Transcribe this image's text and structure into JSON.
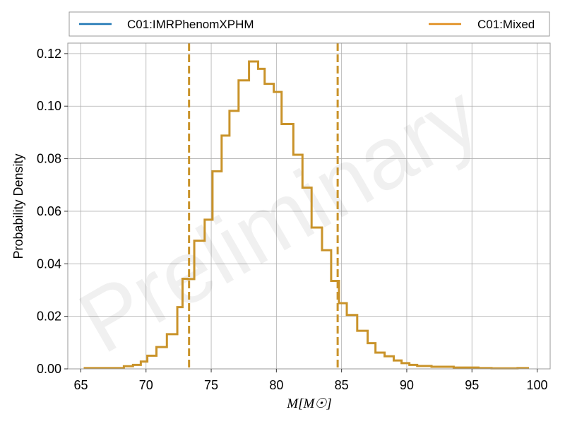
{
  "chart_data": {
    "type": "histogram",
    "xlabel": "M[M☉]",
    "ylabel": "Probability Density",
    "xlim": [
      64,
      101
    ],
    "ylim": [
      0,
      0.124
    ],
    "xticks": [
      65,
      70,
      75,
      80,
      85,
      90,
      95,
      100
    ],
    "yticks": [
      0.0,
      0.02,
      0.04,
      0.06,
      0.08,
      0.1,
      0.12
    ],
    "ytick_labels": [
      "0.00",
      "0.02",
      "0.04",
      "0.06",
      "0.08",
      "0.10",
      "0.12"
    ],
    "grid": true,
    "legend_position": "top, outside plot",
    "watermark": "Preliminary",
    "series": [
      {
        "name": "C01:IMRPhenomXPHM",
        "color": "#1f77b4"
      },
      {
        "name": "C01:Mixed",
        "color": "#e08c1a"
      }
    ],
    "histogram": {
      "color": "#c9932a",
      "bin_edges": [
        65.3,
        66.3,
        67.3,
        68.3,
        69.0,
        69.6,
        70.1,
        70.8,
        71.6,
        72.4,
        72.8,
        73.2,
        73.7,
        74.5,
        75.1,
        75.8,
        76.4,
        77.1,
        77.9,
        78.6,
        79.1,
        79.8,
        80.4,
        81.3,
        82.0,
        82.7,
        83.5,
        84.2,
        84.8,
        85.4,
        86.2,
        87.0,
        87.6,
        88.3,
        89.0,
        89.6,
        90.2,
        90.8,
        91.9,
        93.6,
        95.5,
        96.5,
        98.5,
        99.3
      ],
      "densities": [
        0.0003,
        0.0003,
        0.0003,
        0.001,
        0.0015,
        0.0028,
        0.005,
        0.0083,
        0.0132,
        0.0235,
        0.0343,
        0.0342,
        0.0488,
        0.0568,
        0.0752,
        0.0888,
        0.0982,
        0.1098,
        0.117,
        0.1142,
        0.1085,
        0.1054,
        0.0932,
        0.0815,
        0.069,
        0.0538,
        0.0452,
        0.0335,
        0.025,
        0.0205,
        0.0145,
        0.0098,
        0.0062,
        0.0048,
        0.0032,
        0.0022,
        0.0015,
        0.0011,
        0.0008,
        0.0005,
        0.0003,
        0.0002,
        0.0003
      ]
    },
    "vlines": [
      {
        "x": 73.3,
        "style": "dashed",
        "color": "#c9932a"
      },
      {
        "x": 84.7,
        "style": "dashed",
        "color": "#c9932a"
      }
    ]
  }
}
